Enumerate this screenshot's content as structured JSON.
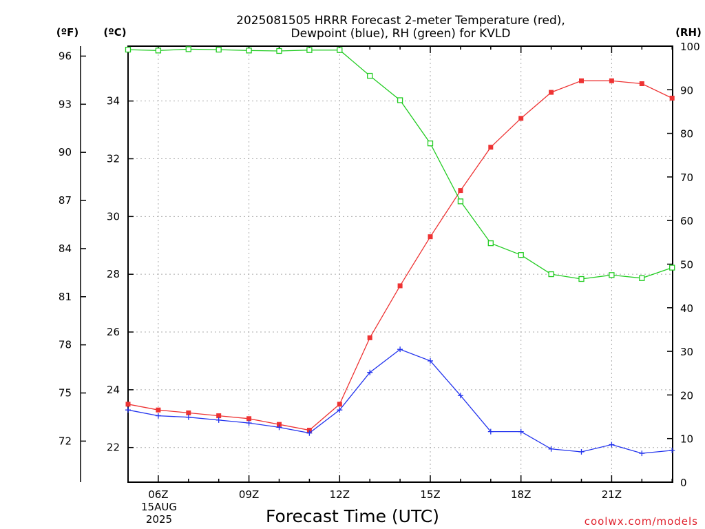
{
  "title_line1": "2025081505 HRRR Forecast 2-meter Temperature (red),",
  "title_line2": "Dewpoint (blue), RH (green) for KVLD",
  "unit_f": "(ºF)",
  "unit_c": "(ºC)",
  "unit_rh": "(RH)",
  "x_axis_label": "Forecast Time (UTC)",
  "credit": "coolwx.com/models",
  "date_label_day": "15AUG",
  "date_label_year": "2025",
  "colors": {
    "temperature": "#ee3333",
    "dewpoint": "#2233ee",
    "rh": "#22cc22",
    "grid": "#aaaaaa",
    "credit": "#e0202c"
  },
  "chart_data": {
    "type": "line",
    "title": "2025081505 HRRR Forecast 2-meter Temperature (red), Dewpoint (blue), RH (green) for KVLD",
    "xlabel": "Forecast Time (UTC)",
    "x": [
      "05Z",
      "06Z",
      "07Z",
      "08Z",
      "09Z",
      "10Z",
      "11Z",
      "12Z",
      "13Z",
      "14Z",
      "15Z",
      "16Z",
      "17Z",
      "18Z",
      "19Z",
      "20Z",
      "21Z",
      "22Z",
      "23Z"
    ],
    "x_ticks": [
      "06Z",
      "09Z",
      "12Z",
      "15Z",
      "18Z",
      "21Z"
    ],
    "y_left_celsius": {
      "label": "(ºC)",
      "range": [
        20.8,
        35.9
      ],
      "ticks": [
        22,
        24,
        26,
        28,
        30,
        32,
        34
      ]
    },
    "y_left_fahrenheit": {
      "label": "(ºF)",
      "ticks": [
        72,
        75,
        78,
        81,
        84,
        87,
        90,
        93,
        96
      ]
    },
    "y_right_rh": {
      "label": "(RH)",
      "range": [
        0,
        100
      ],
      "ticks": [
        0,
        10,
        20,
        30,
        40,
        50,
        60,
        70,
        80,
        90,
        100
      ]
    },
    "grid": true,
    "series": [
      {
        "name": "Temperature (red)",
        "axis": "celsius",
        "marker": "filled-square",
        "values": [
          23.5,
          23.3,
          23.2,
          23.1,
          23.0,
          22.8,
          22.6,
          23.5,
          25.8,
          27.6,
          29.3,
          30.9,
          32.4,
          33.4,
          34.3,
          34.7,
          34.7,
          34.6,
          34.1
        ]
      },
      {
        "name": "Dewpoint (blue)",
        "axis": "celsius",
        "marker": "plus",
        "values": [
          23.3,
          23.1,
          23.05,
          22.95,
          22.85,
          22.7,
          22.5,
          23.3,
          24.6,
          25.4,
          25.0,
          23.8,
          22.55,
          22.55,
          21.95,
          21.85,
          22.1,
          21.8,
          21.9
        ]
      },
      {
        "name": "RH (green)",
        "axis": "rh",
        "marker": "open-square",
        "values": [
          99.2,
          99.0,
          99.3,
          99.2,
          99.0,
          98.9,
          99.1,
          99.1,
          93.2,
          87.6,
          77.7,
          64.4,
          54.8,
          52.1,
          47.7,
          46.6,
          47.5,
          46.8,
          49.2
        ]
      }
    ]
  }
}
